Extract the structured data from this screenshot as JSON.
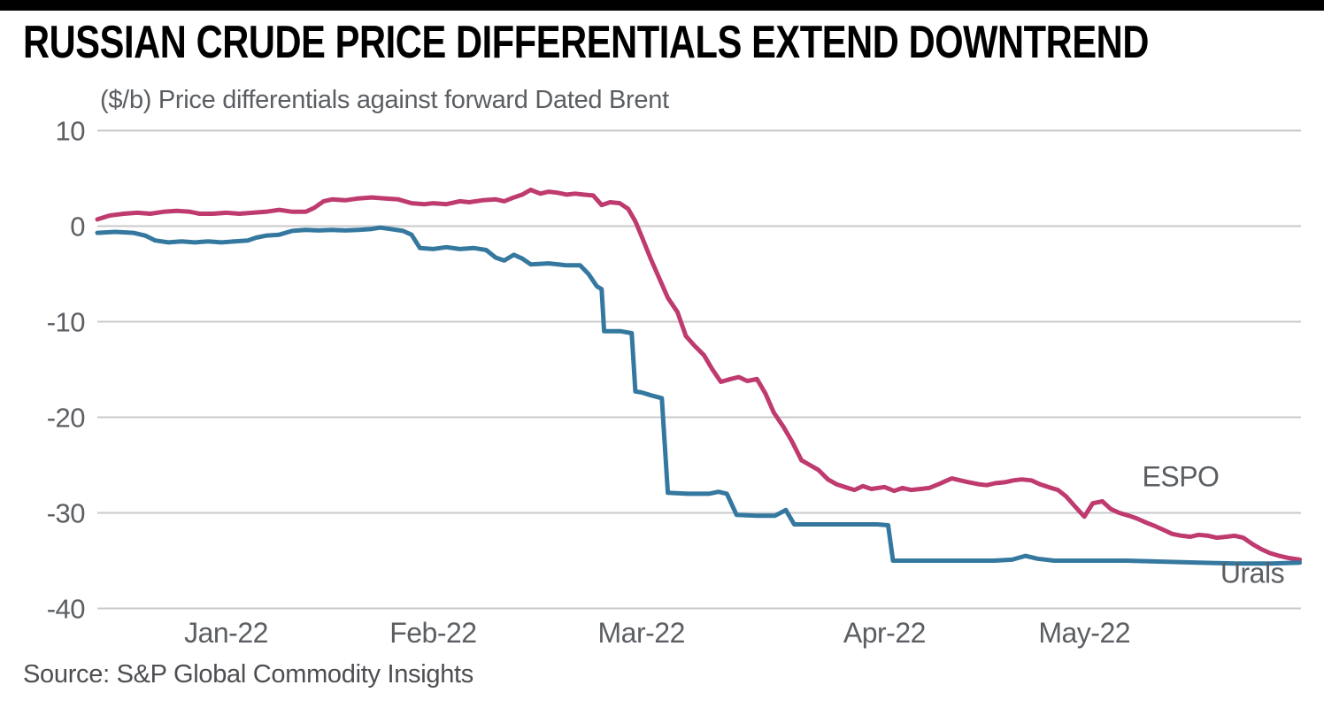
{
  "page": {
    "title": "RUSSIAN CRUDE PRICE DIFFERENTIALS EXTEND DOWNTREND",
    "subtitle": "($/b) Price differentials against forward Dated Brent",
    "source": "Source: S&P Global Commodity Insights"
  },
  "colors": {
    "top_bar": "#000000",
    "title_text": "#000000",
    "axis_text": "#5b5e62",
    "grid": "#c9cacb",
    "espo": "#bf3a6f",
    "urals": "#35789f"
  },
  "chart_data": {
    "type": "line",
    "title": "RUSSIAN CRUDE PRICE DIFFERENTIALS EXTEND DOWNTREND",
    "subtitle": "($/b) Price differentials against forward Dated Brent",
    "source": "Source: S&P Global Commodity Insights",
    "ylabel": "$/b vs forward Dated Brent",
    "ylim": [
      -40,
      10
    ],
    "yticks": [
      10,
      0,
      -10,
      -20,
      -30,
      -40
    ],
    "grid": "horizontal",
    "legend_position": "end-of-line-labels",
    "xticks": [
      {
        "pos": 0.107,
        "label": "Jan-22"
      },
      {
        "pos": 0.279,
        "label": "Feb-22"
      },
      {
        "pos": 0.452,
        "label": "Mar-22"
      },
      {
        "pos": 0.654,
        "label": "Apr-22"
      },
      {
        "pos": 0.82,
        "label": "May-22"
      }
    ],
    "series": [
      {
        "name": "ESPO",
        "color": "#bf3a6f",
        "label_pos": {
          "x": 0.868,
          "y": -27.2
        },
        "points": [
          [
            0.0,
            0.7
          ],
          [
            0.01,
            1.1
          ],
          [
            0.022,
            1.3
          ],
          [
            0.033,
            1.4
          ],
          [
            0.044,
            1.3
          ],
          [
            0.055,
            1.5
          ],
          [
            0.066,
            1.6
          ],
          [
            0.077,
            1.5
          ],
          [
            0.085,
            1.3
          ],
          [
            0.096,
            1.3
          ],
          [
            0.107,
            1.4
          ],
          [
            0.118,
            1.3
          ],
          [
            0.129,
            1.4
          ],
          [
            0.14,
            1.5
          ],
          [
            0.151,
            1.7
          ],
          [
            0.162,
            1.5
          ],
          [
            0.173,
            1.5
          ],
          [
            0.18,
            1.9
          ],
          [
            0.188,
            2.6
          ],
          [
            0.195,
            2.8
          ],
          [
            0.206,
            2.7
          ],
          [
            0.217,
            2.9
          ],
          [
            0.228,
            3.0
          ],
          [
            0.239,
            2.9
          ],
          [
            0.25,
            2.8
          ],
          [
            0.261,
            2.4
          ],
          [
            0.272,
            2.3
          ],
          [
            0.279,
            2.4
          ],
          [
            0.29,
            2.3
          ],
          [
            0.301,
            2.6
          ],
          [
            0.309,
            2.5
          ],
          [
            0.32,
            2.7
          ],
          [
            0.331,
            2.8
          ],
          [
            0.338,
            2.6
          ],
          [
            0.346,
            3.0
          ],
          [
            0.353,
            3.3
          ],
          [
            0.36,
            3.8
          ],
          [
            0.368,
            3.4
          ],
          [
            0.375,
            3.6
          ],
          [
            0.382,
            3.5
          ],
          [
            0.39,
            3.3
          ],
          [
            0.397,
            3.4
          ],
          [
            0.404,
            3.3
          ],
          [
            0.412,
            3.2
          ],
          [
            0.419,
            2.2
          ],
          [
            0.426,
            2.5
          ],
          [
            0.434,
            2.4
          ],
          [
            0.441,
            1.8
          ],
          [
            0.447,
            0.5
          ],
          [
            0.452,
            -1.0
          ],
          [
            0.46,
            -3.5
          ],
          [
            0.467,
            -5.5
          ],
          [
            0.474,
            -7.5
          ],
          [
            0.482,
            -9.0
          ],
          [
            0.489,
            -11.5
          ],
          [
            0.496,
            -12.5
          ],
          [
            0.504,
            -13.5
          ],
          [
            0.511,
            -15.0
          ],
          [
            0.518,
            -16.3
          ],
          [
            0.526,
            -16.0
          ],
          [
            0.533,
            -15.8
          ],
          [
            0.54,
            -16.2
          ],
          [
            0.548,
            -16.0
          ],
          [
            0.555,
            -17.5
          ],
          [
            0.562,
            -19.5
          ],
          [
            0.57,
            -21.0
          ],
          [
            0.577,
            -22.5
          ],
          [
            0.585,
            -24.5
          ],
          [
            0.592,
            -25.0
          ],
          [
            0.599,
            -25.5
          ],
          [
            0.607,
            -26.5
          ],
          [
            0.614,
            -27.0
          ],
          [
            0.621,
            -27.3
          ],
          [
            0.629,
            -27.6
          ],
          [
            0.636,
            -27.2
          ],
          [
            0.643,
            -27.5
          ],
          [
            0.654,
            -27.3
          ],
          [
            0.662,
            -27.7
          ],
          [
            0.669,
            -27.4
          ],
          [
            0.676,
            -27.6
          ],
          [
            0.684,
            -27.5
          ],
          [
            0.691,
            -27.4
          ],
          [
            0.699,
            -27.0
          ],
          [
            0.706,
            -26.6
          ],
          [
            0.71,
            -26.4
          ],
          [
            0.717,
            -26.6
          ],
          [
            0.724,
            -26.8
          ],
          [
            0.732,
            -27.0
          ],
          [
            0.739,
            -27.1
          ],
          [
            0.746,
            -26.9
          ],
          [
            0.754,
            -26.8
          ],
          [
            0.761,
            -26.6
          ],
          [
            0.768,
            -26.5
          ],
          [
            0.776,
            -26.6
          ],
          [
            0.783,
            -27.0
          ],
          [
            0.79,
            -27.3
          ],
          [
            0.798,
            -27.6
          ],
          [
            0.805,
            -28.3
          ],
          [
            0.812,
            -29.3
          ],
          [
            0.82,
            -30.4
          ],
          [
            0.827,
            -29.0
          ],
          [
            0.835,
            -28.8
          ],
          [
            0.842,
            -29.6
          ],
          [
            0.849,
            -30.0
          ],
          [
            0.857,
            -30.3
          ],
          [
            0.864,
            -30.6
          ],
          [
            0.871,
            -31.0
          ],
          [
            0.879,
            -31.4
          ],
          [
            0.886,
            -31.8
          ],
          [
            0.893,
            -32.2
          ],
          [
            0.901,
            -32.4
          ],
          [
            0.908,
            -32.5
          ],
          [
            0.915,
            -32.3
          ],
          [
            0.923,
            -32.4
          ],
          [
            0.93,
            -32.6
          ],
          [
            0.938,
            -32.5
          ],
          [
            0.945,
            -32.4
          ],
          [
            0.952,
            -32.6
          ],
          [
            0.96,
            -33.3
          ],
          [
            0.967,
            -33.8
          ],
          [
            0.974,
            -34.2
          ],
          [
            0.982,
            -34.5
          ],
          [
            0.989,
            -34.7
          ],
          [
            0.999,
            -34.9
          ]
        ]
      },
      {
        "name": "Urals",
        "color": "#35789f",
        "label_pos": {
          "x": 0.933,
          "y": -37.3
        },
        "points": [
          [
            0.0,
            -0.7
          ],
          [
            0.015,
            -0.6
          ],
          [
            0.03,
            -0.7
          ],
          [
            0.04,
            -1.0
          ],
          [
            0.048,
            -1.5
          ],
          [
            0.059,
            -1.7
          ],
          [
            0.07,
            -1.6
          ],
          [
            0.081,
            -1.7
          ],
          [
            0.092,
            -1.6
          ],
          [
            0.103,
            -1.7
          ],
          [
            0.114,
            -1.6
          ],
          [
            0.125,
            -1.5
          ],
          [
            0.132,
            -1.2
          ],
          [
            0.14,
            -1.0
          ],
          [
            0.151,
            -0.9
          ],
          [
            0.162,
            -0.5
          ],
          [
            0.173,
            -0.4
          ],
          [
            0.184,
            -0.45
          ],
          [
            0.195,
            -0.4
          ],
          [
            0.206,
            -0.45
          ],
          [
            0.217,
            -0.4
          ],
          [
            0.228,
            -0.3
          ],
          [
            0.235,
            -0.15
          ],
          [
            0.243,
            -0.3
          ],
          [
            0.254,
            -0.5
          ],
          [
            0.261,
            -0.9
          ],
          [
            0.268,
            -2.3
          ],
          [
            0.279,
            -2.4
          ],
          [
            0.29,
            -2.2
          ],
          [
            0.301,
            -2.4
          ],
          [
            0.313,
            -2.3
          ],
          [
            0.323,
            -2.5
          ],
          [
            0.331,
            -3.3
          ],
          [
            0.338,
            -3.6
          ],
          [
            0.346,
            -3.0
          ],
          [
            0.353,
            -3.4
          ],
          [
            0.36,
            -4.0
          ],
          [
            0.375,
            -3.9
          ],
          [
            0.39,
            -4.1
          ],
          [
            0.401,
            -4.1
          ],
          [
            0.408,
            -5.0
          ],
          [
            0.415,
            -6.3
          ],
          [
            0.419,
            -6.6
          ],
          [
            0.421,
            -11.0
          ],
          [
            0.435,
            -11.0
          ],
          [
            0.444,
            -11.2
          ],
          [
            0.447,
            -17.3
          ],
          [
            0.452,
            -17.4
          ],
          [
            0.46,
            -17.7
          ],
          [
            0.469,
            -18.0
          ],
          [
            0.474,
            -27.9
          ],
          [
            0.49,
            -28.0
          ],
          [
            0.508,
            -28.0
          ],
          [
            0.516,
            -27.8
          ],
          [
            0.523,
            -28.0
          ],
          [
            0.531,
            -30.2
          ],
          [
            0.548,
            -30.3
          ],
          [
            0.563,
            -30.3
          ],
          [
            0.572,
            -29.7
          ],
          [
            0.579,
            -31.2
          ],
          [
            0.6,
            -31.2
          ],
          [
            0.625,
            -31.2
          ],
          [
            0.648,
            -31.2
          ],
          [
            0.657,
            -31.3
          ],
          [
            0.661,
            -35.0
          ],
          [
            0.685,
            -35.0
          ],
          [
            0.715,
            -35.0
          ],
          [
            0.745,
            -35.0
          ],
          [
            0.76,
            -34.9
          ],
          [
            0.771,
            -34.5
          ],
          [
            0.781,
            -34.8
          ],
          [
            0.795,
            -35.0
          ],
          [
            0.825,
            -35.0
          ],
          [
            0.855,
            -35.0
          ],
          [
            0.885,
            -35.1
          ],
          [
            0.915,
            -35.2
          ],
          [
            0.945,
            -35.3
          ],
          [
            0.975,
            -35.3
          ],
          [
            0.999,
            -35.2
          ]
        ]
      }
    ]
  }
}
